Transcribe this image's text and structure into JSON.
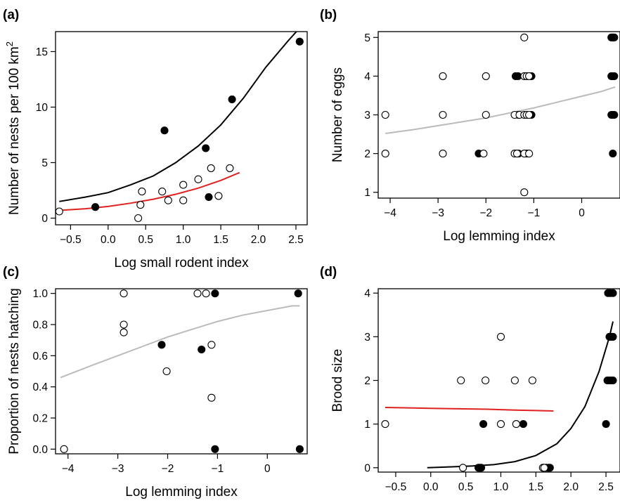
{
  "chart_data": [
    {
      "panel": "(a)",
      "type": "scatter",
      "xlabel": "Log small rodent index",
      "ylabel": "Number of nests per 100 km",
      "ylabel_superscript": "2",
      "xticks": [
        "-0.5",
        "0.0",
        "0.5",
        "1.0",
        "1.5",
        "2.0",
        "2.5"
      ],
      "yticks": [
        "0",
        "5",
        "10",
        "15"
      ],
      "xlim": [
        -0.7,
        2.65
      ],
      "ylim": [
        -0.6,
        16.8
      ],
      "series": [
        {
          "filled": true,
          "points": [
            [
              -0.17,
              1.0
            ],
            [
              0.75,
              7.9
            ],
            [
              1.3,
              6.3
            ],
            [
              1.34,
              1.9
            ],
            [
              1.65,
              10.7
            ],
            [
              2.55,
              15.9
            ]
          ]
        },
        {
          "filled": false,
          "points": [
            [
              -0.65,
              0.6
            ],
            [
              0.4,
              0.0
            ],
            [
              0.43,
              1.2
            ],
            [
              0.45,
              2.4
            ],
            [
              0.72,
              2.4
            ],
            [
              0.8,
              1.6
            ],
            [
              1.0,
              1.6
            ],
            [
              1.0,
              3.0
            ],
            [
              1.2,
              3.5
            ],
            [
              1.37,
              4.5
            ],
            [
              1.47,
              2.0
            ],
            [
              1.62,
              4.5
            ]
          ]
        }
      ],
      "curves": [
        {
          "color": "#000000",
          "points": [
            [
              -0.65,
              1.5
            ],
            [
              -0.3,
              1.9
            ],
            [
              0.0,
              2.3
            ],
            [
              0.3,
              3.0
            ],
            [
              0.6,
              3.8
            ],
            [
              0.9,
              5.0
            ],
            [
              1.2,
              6.5
            ],
            [
              1.5,
              8.4
            ],
            [
              1.8,
              10.8
            ],
            [
              2.1,
              13.6
            ],
            [
              2.4,
              16.0
            ],
            [
              2.6,
              17.5
            ]
          ]
        },
        {
          "color": "#e0211f",
          "points": [
            [
              -0.65,
              0.7
            ],
            [
              -0.3,
              0.85
            ],
            [
              0.0,
              1.05
            ],
            [
              0.3,
              1.35
            ],
            [
              0.6,
              1.7
            ],
            [
              0.9,
              2.15
            ],
            [
              1.2,
              2.7
            ],
            [
              1.5,
              3.4
            ],
            [
              1.75,
              4.1
            ]
          ]
        }
      ]
    },
    {
      "panel": "(b)",
      "type": "scatter",
      "xlabel": "Log lemming index",
      "ylabel": "Number of eggs",
      "xticks": [
        "-4",
        "-3",
        "-2",
        "-1",
        "0"
      ],
      "yticks": [
        "1",
        "2",
        "3",
        "4",
        "5"
      ],
      "xlim": [
        -4.25,
        0.8
      ],
      "ylim": [
        0.85,
        5.15
      ],
      "series": [
        {
          "filled": true,
          "points": [
            [
              -2.15,
              2
            ],
            [
              -1.38,
              4
            ],
            [
              -1.33,
              4
            ],
            [
              -1.32,
              3
            ],
            [
              -1.32,
              2
            ],
            [
              -1.15,
              2
            ],
            [
              -1.05,
              4
            ],
            [
              -1.05,
              3
            ],
            [
              0.62,
              5
            ],
            [
              0.65,
              5
            ],
            [
              0.68,
              5
            ],
            [
              0.62,
              4
            ],
            [
              0.65,
              4
            ],
            [
              0.68,
              4
            ],
            [
              0.62,
              3
            ],
            [
              0.65,
              3
            ],
            [
              0.68,
              3
            ],
            [
              0.65,
              2
            ]
          ]
        },
        {
          "filled": false,
          "points": [
            [
              -4.1,
              3
            ],
            [
              -4.1,
              2
            ],
            [
              -2.9,
              4
            ],
            [
              -2.9,
              3
            ],
            [
              -2.9,
              2
            ],
            [
              -2.0,
              4
            ],
            [
              -2.0,
              3
            ],
            [
              -2.05,
              2
            ],
            [
              -1.4,
              3
            ],
            [
              -1.4,
              2
            ],
            [
              -1.3,
              3
            ],
            [
              -1.35,
              2
            ],
            [
              -1.2,
              5
            ],
            [
              -1.2,
              4
            ],
            [
              -1.15,
              4
            ],
            [
              -1.1,
              4
            ],
            [
              -1.2,
              3
            ],
            [
              -1.15,
              3
            ],
            [
              -1.1,
              3
            ],
            [
              -1.2,
              2
            ],
            [
              -1.1,
              2
            ],
            [
              -1.2,
              1
            ]
          ]
        }
      ],
      "curves": [
        {
          "color": "#bbbbbb",
          "points": [
            [
              -4.1,
              2.52
            ],
            [
              -3.5,
              2.62
            ],
            [
              -3.0,
              2.72
            ],
            [
              -2.5,
              2.82
            ],
            [
              -2.0,
              2.92
            ],
            [
              -1.5,
              3.05
            ],
            [
              -1.0,
              3.18
            ],
            [
              -0.5,
              3.33
            ],
            [
              0.0,
              3.48
            ],
            [
              0.4,
              3.6
            ],
            [
              0.7,
              3.72
            ]
          ]
        }
      ]
    },
    {
      "panel": "(c)",
      "type": "scatter",
      "xlabel": "Log lemming index",
      "ylabel": "Proportion of nests hatching",
      "xticks": [
        "-4",
        "-3",
        "-2",
        "-1",
        "0"
      ],
      "yticks": [
        "0.0",
        "0.2",
        "0.4",
        "0.6",
        "0.8",
        "1.0"
      ],
      "xlim": [
        -4.25,
        0.8
      ],
      "ylim": [
        -0.03,
        1.03
      ],
      "series": [
        {
          "filled": true,
          "points": [
            [
              -2.12,
              0.67
            ],
            [
              -1.32,
              0.64
            ],
            [
              -1.05,
              1.0
            ],
            [
              -1.05,
              0.0
            ],
            [
              0.62,
              1.0
            ],
            [
              0.65,
              0.0
            ]
          ]
        },
        {
          "filled": false,
          "points": [
            [
              -4.08,
              0.0
            ],
            [
              -2.88,
              1.0
            ],
            [
              -2.88,
              0.8
            ],
            [
              -2.88,
              0.75
            ],
            [
              -2.02,
              0.5
            ],
            [
              -1.4,
              1.0
            ],
            [
              -1.23,
              1.0
            ],
            [
              -1.12,
              0.67
            ],
            [
              -1.12,
              0.33
            ]
          ]
        }
      ],
      "curves": [
        {
          "color": "#bbbbbb",
          "points": [
            [
              -4.15,
              0.46
            ],
            [
              -3.5,
              0.54
            ],
            [
              -3.0,
              0.6
            ],
            [
              -2.5,
              0.66
            ],
            [
              -2.0,
              0.72
            ],
            [
              -1.5,
              0.77
            ],
            [
              -1.0,
              0.82
            ],
            [
              -0.5,
              0.86
            ],
            [
              0.0,
              0.89
            ],
            [
              0.5,
              0.92
            ],
            [
              0.65,
              0.92
            ]
          ]
        }
      ]
    },
    {
      "panel": "(d)",
      "type": "scatter",
      "xlabel": "Log small rodent index",
      "ylabel": "Brood size",
      "xticks": [
        "-0.5",
        "0.0",
        "0.5",
        "1.0",
        "1.5",
        "2.0",
        "2.5"
      ],
      "yticks": [
        "0",
        "1",
        "2",
        "3",
        "4"
      ],
      "xlim": [
        -0.75,
        2.7
      ],
      "ylim": [
        -0.1,
        4.1
      ],
      "series": [
        {
          "filled": true,
          "points": [
            [
              0.68,
              0
            ],
            [
              0.7,
              0
            ],
            [
              0.72,
              0
            ],
            [
              0.75,
              1
            ],
            [
              1.32,
              1
            ],
            [
              1.65,
              0
            ],
            [
              1.68,
              0
            ],
            [
              1.7,
              0
            ],
            [
              2.5,
              1
            ],
            [
              2.52,
              2
            ],
            [
              2.55,
              2
            ],
            [
              2.58,
              2
            ],
            [
              2.6,
              2
            ],
            [
              2.55,
              3
            ],
            [
              2.58,
              3
            ],
            [
              2.6,
              3
            ],
            [
              2.53,
              4
            ],
            [
              2.56,
              4
            ],
            [
              2.6,
              4
            ]
          ]
        },
        {
          "filled": false,
          "points": [
            [
              -0.65,
              1
            ],
            [
              0.43,
              2
            ],
            [
              0.46,
              0
            ],
            [
              0.78,
              2
            ],
            [
              1.0,
              3
            ],
            [
              1.0,
              1
            ],
            [
              1.2,
              2
            ],
            [
              1.22,
              1
            ],
            [
              1.45,
              2
            ],
            [
              1.6,
              0
            ],
            [
              1.62,
              0
            ]
          ]
        }
      ],
      "curves": [
        {
          "color": "#000000",
          "points": [
            [
              -0.05,
              0.0
            ],
            [
              0.3,
              0.02
            ],
            [
              0.6,
              0.04
            ],
            [
              0.9,
              0.07
            ],
            [
              1.2,
              0.14
            ],
            [
              1.5,
              0.28
            ],
            [
              1.8,
              0.55
            ],
            [
              2.0,
              0.9
            ],
            [
              2.2,
              1.4
            ],
            [
              2.4,
              2.2
            ],
            [
              2.55,
              3.0
            ],
            [
              2.6,
              3.35
            ]
          ]
        },
        {
          "color": "#e0211f",
          "points": [
            [
              -0.65,
              1.38
            ],
            [
              -0.3,
              1.37
            ],
            [
              0.0,
              1.36
            ],
            [
              0.4,
              1.35
            ],
            [
              0.8,
              1.34
            ],
            [
              1.2,
              1.32
            ],
            [
              1.5,
              1.31
            ],
            [
              1.75,
              1.3
            ]
          ]
        }
      ]
    }
  ]
}
